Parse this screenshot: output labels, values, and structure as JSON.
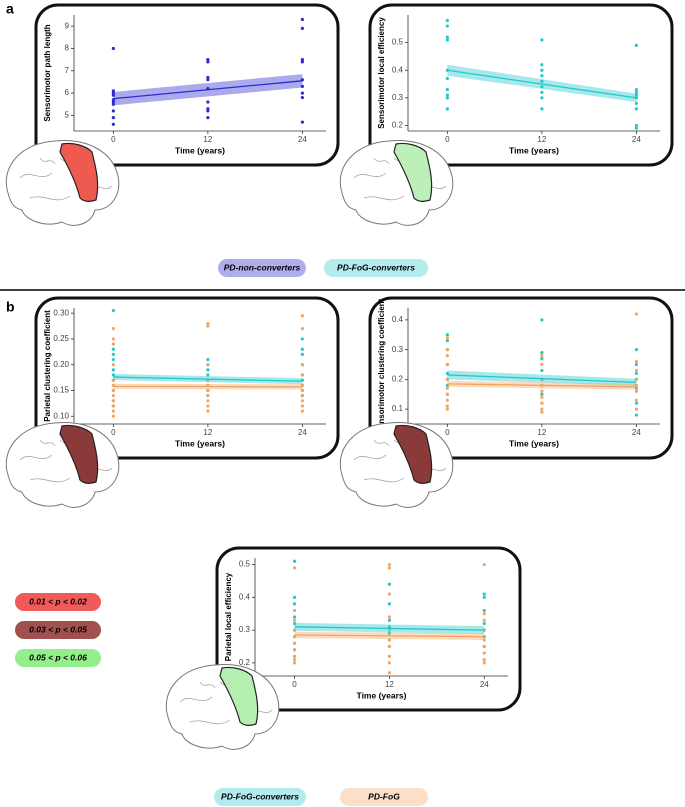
{
  "panel_labels": [
    "a",
    "b"
  ],
  "significance_legend": [
    {
      "label": "0.01 < p < 0.02",
      "color": "#f25a5a"
    },
    {
      "label": "0.03 < p < 0.05",
      "color": "#a0504f"
    },
    {
      "label": "0.05 < p < 0.06",
      "color": "#93ee8c"
    }
  ],
  "chart_data": [
    {
      "type": "scatter",
      "xlabel": "Time (years)",
      "ylabel": "Sensorimotor path length",
      "xlim": [
        -5,
        27
      ],
      "xticks": [
        0,
        12,
        24
      ],
      "ylim": [
        4.3,
        9.5
      ],
      "yticks": [
        5,
        6,
        7,
        8,
        9
      ],
      "series": [
        {
          "name": "PD-non-converters",
          "color": "#2b2bd0",
          "x": [
            0,
            0,
            0,
            0,
            0,
            0,
            0,
            0,
            0,
            0,
            12,
            12,
            12,
            12,
            12,
            12,
            12,
            12,
            12,
            24,
            24,
            24,
            24,
            24,
            24,
            24,
            24,
            24
          ],
          "values": [
            8.0,
            6.1,
            6.0,
            5.9,
            5.7,
            5.6,
            5.5,
            5.2,
            4.9,
            4.6,
            7.5,
            7.4,
            6.7,
            6.6,
            6.2,
            5.6,
            5.3,
            5.2,
            4.9,
            9.3,
            8.9,
            7.5,
            7.4,
            6.6,
            6.3,
            6.0,
            5.8,
            4.7
          ],
          "fit": {
            "x": [
              0,
              24
            ],
            "values": [
              5.75,
              6.55
            ],
            "lower": [
              5.45,
              6.25
            ],
            "upper": [
              6.05,
              6.85
            ]
          }
        }
      ]
    },
    {
      "type": "scatter",
      "xlabel": "Time (years)",
      "ylabel": "Sensorimotor local efficiency",
      "xlim": [
        -5,
        27
      ],
      "xticks": [
        0,
        12,
        24
      ],
      "ylim": [
        0.18,
        0.6
      ],
      "yticks": [
        0.2,
        0.3,
        0.4,
        0.5
      ],
      "series": [
        {
          "name": "PD-FoG-converters",
          "color": "#22c8cc",
          "x": [
            0,
            0,
            0,
            0,
            0,
            0,
            0,
            0,
            0,
            0,
            12,
            12,
            12,
            12,
            12,
            12,
            12,
            12,
            12,
            24,
            24,
            24,
            24,
            24,
            24,
            24,
            24,
            24
          ],
          "values": [
            0.58,
            0.56,
            0.52,
            0.51,
            0.4,
            0.37,
            0.33,
            0.31,
            0.3,
            0.26,
            0.51,
            0.42,
            0.4,
            0.38,
            0.36,
            0.34,
            0.32,
            0.3,
            0.26,
            0.49,
            0.33,
            0.32,
            0.31,
            0.3,
            0.28,
            0.26,
            0.2,
            0.19
          ],
          "fit": {
            "x": [
              0,
              24
            ],
            "values": [
              0.4,
              0.3
            ],
            "lower": [
              0.38,
              0.285
            ],
            "upper": [
              0.42,
              0.315
            ]
          }
        }
      ]
    },
    {
      "type": "scatter",
      "xlabel": "Time (years)",
      "ylabel": "Parietal clustering coefficient",
      "xlim": [
        -5,
        27
      ],
      "xticks": [
        0,
        12,
        24
      ],
      "ylim": [
        0.085,
        0.31
      ],
      "yticks": [
        {
          "value": 0.1,
          "label": "0.10"
        },
        {
          "value": 0.15,
          "label": "0.15"
        },
        {
          "value": 0.2,
          "label": "0.20"
        },
        {
          "value": 0.25,
          "label": "0.25"
        },
        {
          "value": 0.3,
          "label": "0.30"
        }
      ],
      "series": [
        {
          "name": "PD-FoG-converters",
          "color": "#22c8cc",
          "x": [
            0,
            0,
            0,
            0,
            0,
            0,
            0,
            0,
            0,
            0,
            12,
            12,
            12,
            12,
            12,
            12,
            12,
            12,
            24,
            24,
            24,
            24,
            24,
            24,
            24,
            24,
            24
          ],
          "values": [
            0.305,
            0.23,
            0.22,
            0.21,
            0.19,
            0.18,
            0.17,
            0.15,
            0.13,
            0.12,
            0.21,
            0.2,
            0.19,
            0.18,
            0.17,
            0.16,
            0.15,
            0.14,
            0.25,
            0.23,
            0.22,
            0.2,
            0.18,
            0.17,
            0.16,
            0.15,
            0.14
          ],
          "fit": {
            "x": [
              0,
              24
            ],
            "values": [
              0.176,
              0.168
            ],
            "lower": [
              0.17,
              0.162
            ],
            "upper": [
              0.182,
              0.174
            ]
          }
        },
        {
          "name": "PD-FoG",
          "color": "#f4a460",
          "x": [
            0,
            0,
            0,
            0,
            0,
            0,
            0,
            0,
            0,
            0,
            0,
            0,
            12,
            12,
            12,
            12,
            12,
            12,
            12,
            12,
            12,
            12,
            24,
            24,
            24,
            24,
            24,
            24,
            24,
            24,
            24,
            24
          ],
          "values": [
            0.27,
            0.25,
            0.24,
            0.2,
            0.17,
            0.16,
            0.15,
            0.14,
            0.13,
            0.12,
            0.11,
            0.1,
            0.28,
            0.275,
            0.2,
            0.17,
            0.16,
            0.15,
            0.14,
            0.13,
            0.12,
            0.11,
            0.295,
            0.27,
            0.2,
            0.18,
            0.16,
            0.15,
            0.14,
            0.13,
            0.12,
            0.11
          ],
          "fit": {
            "x": [
              0,
              24
            ],
            "values": [
              0.158,
              0.157
            ],
            "lower": [
              0.153,
              0.152
            ],
            "upper": [
              0.163,
              0.162
            ]
          }
        }
      ]
    },
    {
      "type": "scatter",
      "xlabel": "Time (years)",
      "ylabel": "Sensorimotor clustering coefficient",
      "xlim": [
        -5,
        27
      ],
      "xticks": [
        0,
        12,
        24
      ],
      "ylim": [
        0.05,
        0.44
      ],
      "yticks": [
        0.1,
        0.2,
        0.3,
        0.4
      ],
      "series": [
        {
          "name": "PD-FoG-converters",
          "color": "#22c8cc",
          "x": [
            0,
            0,
            0,
            0,
            0,
            0,
            0,
            0,
            12,
            12,
            12,
            12,
            12,
            12,
            12,
            12,
            24,
            24,
            24,
            24,
            24,
            24,
            24
          ],
          "values": [
            0.35,
            0.33,
            0.3,
            0.25,
            0.22,
            0.2,
            0.18,
            0.15,
            0.4,
            0.29,
            0.27,
            0.23,
            0.2,
            0.18,
            0.15,
            0.12,
            0.3,
            0.25,
            0.22,
            0.2,
            0.17,
            0.12,
            0.08
          ],
          "fit": {
            "x": [
              0,
              24
            ],
            "values": [
              0.215,
              0.19
            ],
            "lower": [
              0.2,
              0.178
            ],
            "upper": [
              0.23,
              0.202
            ]
          }
        },
        {
          "name": "PD-FoG",
          "color": "#f4a460",
          "x": [
            0,
            0,
            0,
            0,
            0,
            0,
            0,
            0,
            0,
            0,
            12,
            12,
            12,
            12,
            12,
            12,
            12,
            12,
            12,
            24,
            24,
            24,
            24,
            24,
            24,
            24,
            24
          ],
          "values": [
            0.34,
            0.3,
            0.28,
            0.25,
            0.2,
            0.17,
            0.15,
            0.13,
            0.11,
            0.1,
            0.28,
            0.25,
            0.2,
            0.18,
            0.16,
            0.14,
            0.12,
            0.1,
            0.09,
            0.42,
            0.26,
            0.23,
            0.2,
            0.18,
            0.16,
            0.13,
            0.1
          ],
          "fit": {
            "x": [
              0,
              24
            ],
            "values": [
              0.185,
              0.175
            ],
            "lower": [
              0.175,
              0.165
            ],
            "upper": [
              0.195,
              0.185
            ]
          }
        }
      ]
    },
    {
      "type": "scatter",
      "xlabel": "Time (years)",
      "ylabel": "Parietal local efficiency",
      "xlim": [
        -5,
        27
      ],
      "xticks": [
        0,
        12,
        24
      ],
      "ylim": [
        0.16,
        0.52
      ],
      "yticks": [
        0.2,
        0.3,
        0.4,
        0.5
      ],
      "series": [
        {
          "name": "PD-FoG-converters",
          "color": "#22c8cc",
          "x": [
            0,
            0,
            0,
            0,
            0,
            0,
            0,
            0,
            0,
            12,
            12,
            12,
            12,
            12,
            12,
            12,
            24,
            24,
            24,
            24,
            24,
            24,
            24
          ],
          "values": [
            0.51,
            0.4,
            0.38,
            0.34,
            0.32,
            0.3,
            0.28,
            0.26,
            0.24,
            0.44,
            0.38,
            0.33,
            0.31,
            0.29,
            0.27,
            0.25,
            0.41,
            0.4,
            0.36,
            0.32,
            0.3,
            0.28,
            0.25
          ],
          "fit": {
            "x": [
              0,
              24
            ],
            "values": [
              0.31,
              0.3
            ],
            "lower": [
              0.298,
              0.288
            ],
            "upper": [
              0.322,
              0.312
            ]
          }
        },
        {
          "name": "PD-FoG",
          "color": "#f4a460",
          "x": [
            0,
            0,
            0,
            0,
            0,
            0,
            0,
            0,
            0,
            0,
            12,
            12,
            12,
            12,
            12,
            12,
            12,
            12,
            12,
            12,
            24,
            24,
            24,
            24,
            24,
            24,
            24,
            24,
            24
          ],
          "values": [
            0.49,
            0.36,
            0.33,
            0.3,
            0.28,
            0.26,
            0.24,
            0.22,
            0.21,
            0.2,
            0.5,
            0.49,
            0.41,
            0.34,
            0.3,
            0.27,
            0.25,
            0.22,
            0.2,
            0.17,
            0.5,
            0.35,
            0.33,
            0.3,
            0.27,
            0.25,
            0.23,
            0.21,
            0.2
          ],
          "fit": {
            "x": [
              0,
              24
            ],
            "values": [
              0.285,
              0.28
            ],
            "lower": [
              0.275,
              0.27
            ],
            "upper": [
              0.295,
              0.29
            ]
          }
        }
      ]
    }
  ]
}
